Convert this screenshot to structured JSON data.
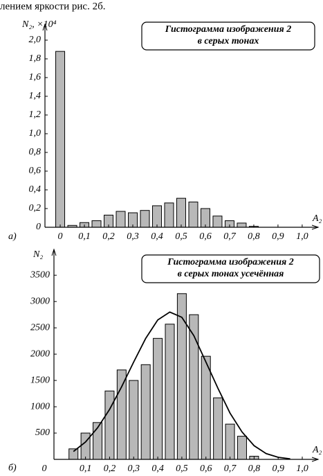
{
  "text_line": "лением яркости рис. 2б.",
  "chart_data": [
    {
      "type": "bar",
      "panel_label": "а)",
      "title_lines": [
        "Гистограмма изображения 2",
        "в серых тонах"
      ],
      "y_label": "N₂, ×10⁴",
      "x_label": "A₂",
      "x": [
        0,
        0.05,
        0.1,
        0.15,
        0.2,
        0.25,
        0.3,
        0.35,
        0.4,
        0.45,
        0.5,
        0.55,
        0.6,
        0.65,
        0.7,
        0.75,
        0.8
      ],
      "values": [
        1.88,
        0.02,
        0.05,
        0.07,
        0.13,
        0.17,
        0.155,
        0.18,
        0.23,
        0.26,
        0.31,
        0.27,
        0.2,
        0.12,
        0.07,
        0.045,
        0.01
      ],
      "color": "#b8b8b8",
      "xlim": [
        -0.063,
        1.066
      ],
      "ylim": [
        0,
        2.17
      ],
      "xticks": [
        0,
        {
          "value": 0.1,
          "label": "0,1"
        },
        {
          "value": 0.2,
          "label": "0,2"
        },
        {
          "value": 0.3,
          "label": "0,3"
        },
        {
          "value": 0.4,
          "label": "0,4"
        },
        {
          "value": 0.5,
          "label": "0,5"
        },
        {
          "value": 0.6,
          "label": "0,6"
        },
        {
          "value": 0.7,
          "label": "0,7"
        },
        {
          "value": 0.8,
          "label": "0,8"
        },
        {
          "value": 0.9,
          "label": "0,9"
        },
        {
          "value": 1.0,
          "label": "1,0"
        }
      ],
      "yticks": [
        0,
        {
          "value": 0.2,
          "label": "0,2"
        },
        {
          "value": 0.4,
          "label": "0,4"
        },
        {
          "value": 0.6,
          "label": "0,6"
        },
        {
          "value": 0.8,
          "label": "0,8"
        },
        {
          "value": 1.0,
          "label": "1,0"
        },
        {
          "value": 1.2,
          "label": "1,2"
        },
        {
          "value": 1.4,
          "label": "1,4"
        },
        {
          "value": 1.6,
          "label": "1,6"
        },
        {
          "value": 1.8,
          "label": "1,8"
        },
        {
          "value": 2.0,
          "label": "2,0"
        }
      ]
    },
    {
      "type": "bar",
      "panel_label": "б)",
      "title_lines": [
        "Гистограмма изображения 2",
        "в серых тонах усечённая"
      ],
      "y_label": "N₂",
      "x_label": "A₂",
      "origin_label": "0",
      "x": [
        0.05,
        0.1,
        0.15,
        0.2,
        0.25,
        0.3,
        0.35,
        0.4,
        0.45,
        0.5,
        0.55,
        0.6,
        0.65,
        0.7,
        0.75,
        0.8
      ],
      "values": [
        200,
        500,
        700,
        1300,
        1700,
        1500,
        1800,
        2300,
        2570,
        3150,
        2750,
        1960,
        1170,
        670,
        440,
        60
      ],
      "color": "#b8b8b8",
      "curve": {
        "type": "line",
        "color": "#000000",
        "x": [
          0.05,
          0.1,
          0.15,
          0.2,
          0.25,
          0.3,
          0.35,
          0.4,
          0.45,
          0.5,
          0.55,
          0.6,
          0.65,
          0.7,
          0.75,
          0.8,
          0.85,
          0.9,
          0.95
        ],
        "values": [
          150,
          330,
          600,
          950,
          1380,
          1850,
          2300,
          2650,
          2800,
          2700,
          2350,
          1850,
          1350,
          880,
          520,
          260,
          110,
          40,
          10
        ]
      },
      "xlim": [
        -0.031,
        1.066
      ],
      "ylim": [
        0,
        3990
      ],
      "xticks": [
        {
          "value": 0.1,
          "label": "0,1"
        },
        {
          "value": 0.2,
          "label": "0,2"
        },
        {
          "value": 0.3,
          "label": "0,3"
        },
        {
          "value": 0.4,
          "label": "0,4"
        },
        {
          "value": 0.5,
          "label": "0,5"
        },
        {
          "value": 0.6,
          "label": "0,6"
        },
        {
          "value": 0.7,
          "label": "0,7"
        },
        {
          "value": 0.8,
          "label": "0,8"
        },
        {
          "value": 0.9,
          "label": "0,9"
        },
        {
          "value": 1.0,
          "label": "1,0"
        }
      ],
      "yticks": [
        500,
        1000,
        1500,
        2000,
        2500,
        3000,
        3500
      ]
    }
  ]
}
